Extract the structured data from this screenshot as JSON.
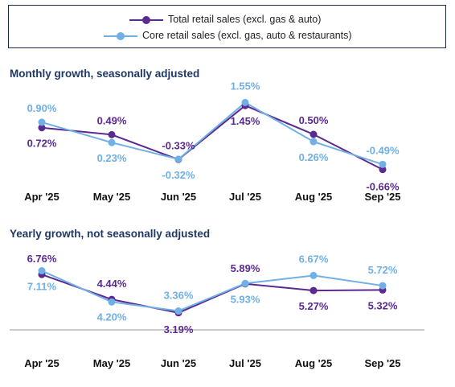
{
  "legend": {
    "total_label": "Total retail sales (excl. gas & auto)",
    "core_label": "Core retail sales (excl. gas, auto & restaurants)"
  },
  "colors": {
    "total": "#5b2a91",
    "core": "#6fb0e6",
    "title": "#1f3864",
    "axis": "#999999"
  },
  "chart_data": [
    {
      "type": "line",
      "title": "Monthly growth, seasonally adjusted",
      "categories": [
        "Apr '25",
        "May '25",
        "Jun '25",
        "Jul '25",
        "Aug '25",
        "Sep '25"
      ],
      "series": [
        {
          "name": "Total retail sales (excl. gas & auto)",
          "values": [
            0.72,
            0.49,
            -0.33,
            1.45,
            0.5,
            -0.66
          ],
          "labels": [
            "0.72%",
            "0.49%",
            "-0.33%",
            "1.45%",
            "0.50%",
            "-0.66%"
          ]
        },
        {
          "name": "Core retail sales (excl. gas, auto & restaurants)",
          "values": [
            0.9,
            0.23,
            -0.32,
            1.55,
            0.26,
            -0.49
          ],
          "labels": [
            "0.90%",
            "0.23%",
            "-0.32%",
            "1.55%",
            "0.26%",
            "-0.49%"
          ]
        }
      ],
      "ylim": [
        -0.8,
        1.8
      ],
      "grid": false
    },
    {
      "type": "line",
      "title": "Yearly growth, not seasonally adjusted",
      "categories": [
        "Apr '25",
        "May '25",
        "Jun '25",
        "Jul '25",
        "Aug '25",
        "Sep '25"
      ],
      "series": [
        {
          "name": "Total retail sales (excl. gas & auto)",
          "values": [
            6.76,
            4.44,
            3.19,
            5.89,
            5.27,
            5.32
          ],
          "labels": [
            "6.76%",
            "4.44%",
            "3.19%",
            "5.89%",
            "5.27%",
            "5.32%"
          ]
        },
        {
          "name": "Core retail sales (excl. gas, auto & restaurants)",
          "values": [
            7.11,
            4.2,
            3.36,
            5.93,
            6.67,
            5.72
          ],
          "labels": [
            "7.11%",
            "4.20%",
            "3.36%",
            "5.93%",
            "6.67%",
            "5.72%"
          ]
        }
      ],
      "ylim": [
        2.5,
        8.5
      ],
      "grid": false
    }
  ]
}
